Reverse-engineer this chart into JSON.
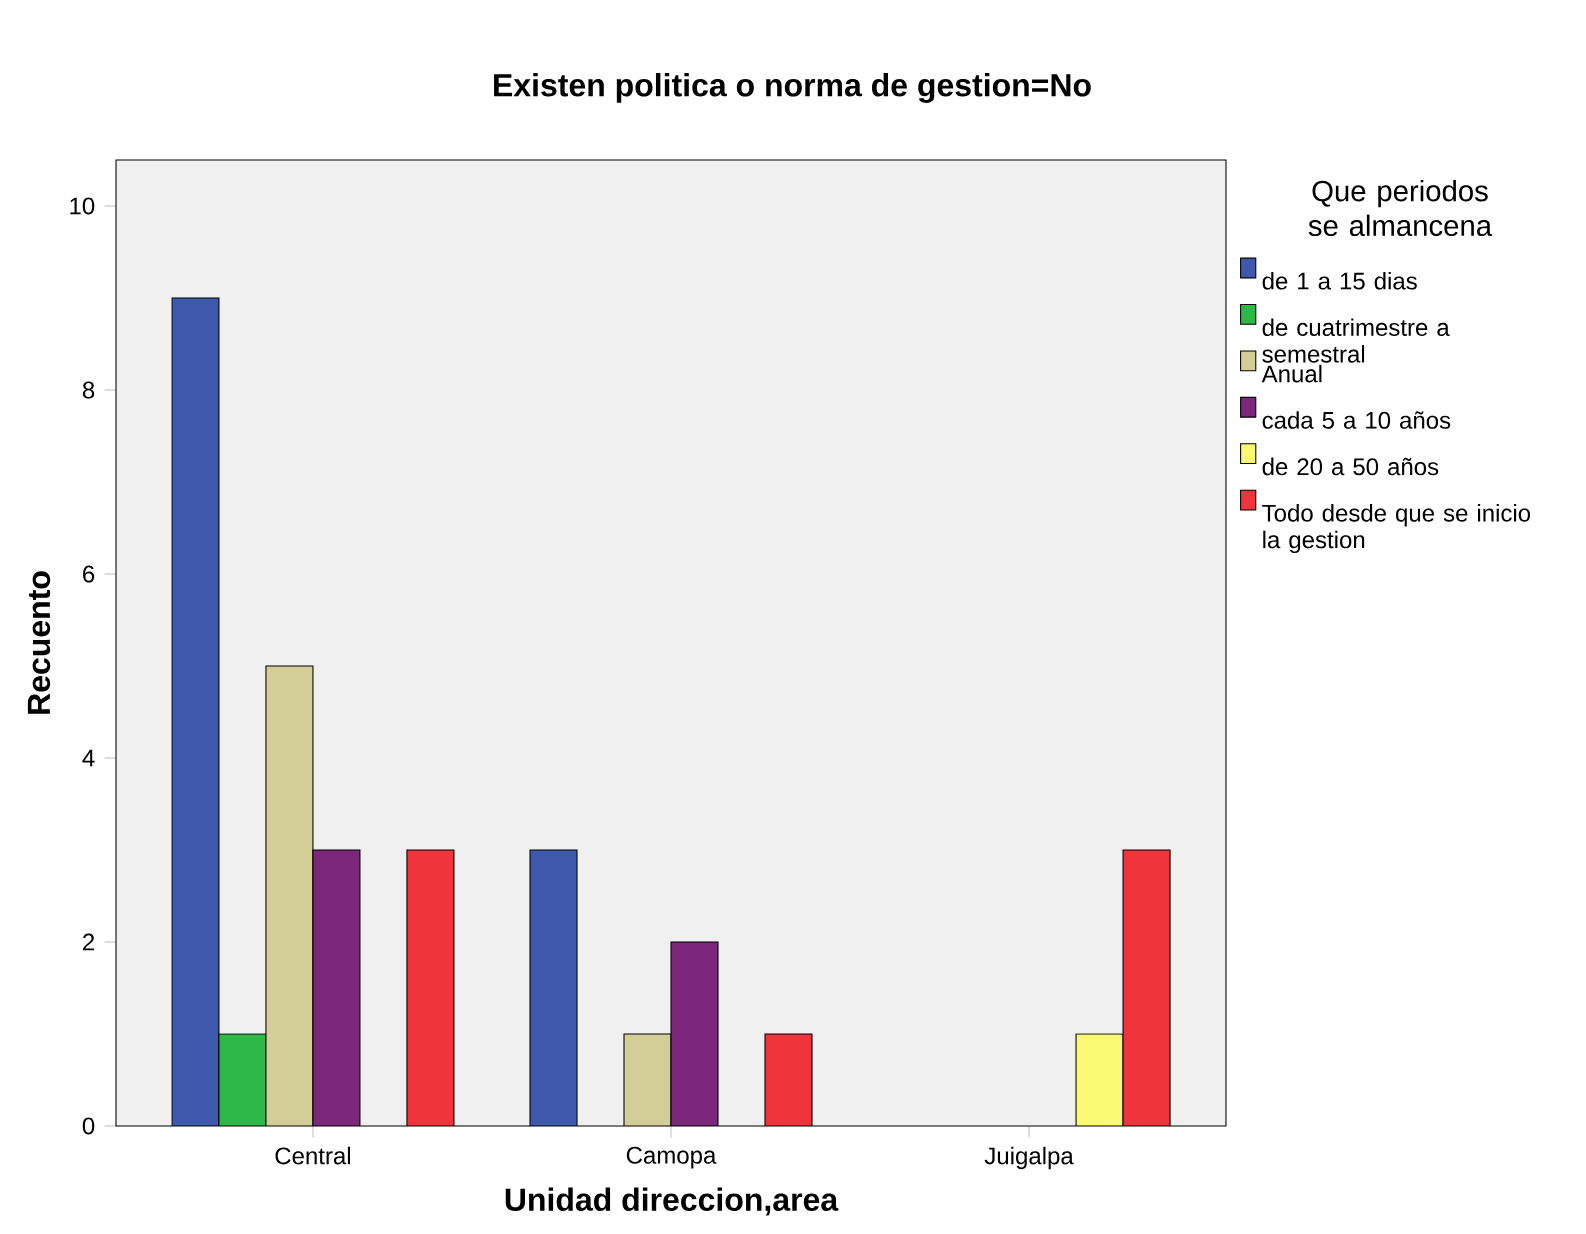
{
  "chart_data": {
    "type": "bar",
    "title": "Existen politica o norma de gestion=No",
    "xlabel": "Unidad direccion,area",
    "ylabel": "Recuento",
    "legend_title": "Que periodos se almancena",
    "legend": "right",
    "categories": [
      "Central",
      "Camopa",
      "Juigalpa"
    ],
    "ylim": [
      0,
      10.5
    ],
    "yticks": [
      0,
      2,
      4,
      6,
      8,
      10
    ],
    "grid": false,
    "series": [
      {
        "name": "de 1 a 15 dias",
        "color": "#3e58ac",
        "values": [
          9,
          3,
          null
        ]
      },
      {
        "name": "de cuatrimestre a semestral",
        "color": "#2eb848",
        "values": [
          1,
          null,
          null
        ]
      },
      {
        "name": "Anual",
        "color": "#d3ce97",
        "values": [
          5,
          1,
          null
        ]
      },
      {
        "name": "cada 5 a 10 años",
        "color": "#7b287c",
        "values": [
          3,
          2,
          null
        ]
      },
      {
        "name": "de 20 a 50 años",
        "color": "#fbf873",
        "values": [
          null,
          null,
          1
        ]
      },
      {
        "name": "Todo desde que se inicio la gestion",
        "color": "#f0343c",
        "values": [
          3,
          1,
          3
        ]
      }
    ]
  }
}
